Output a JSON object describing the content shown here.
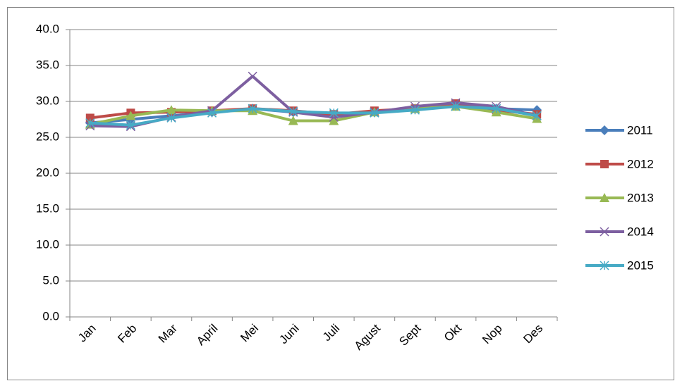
{
  "chart_data": {
    "type": "line",
    "categories": [
      "Jan",
      "Feb",
      "Mar",
      "April",
      "Mei",
      "Juni",
      "Juli",
      "Agust",
      "Sept",
      "Okt",
      "Nop",
      "Des"
    ],
    "series": [
      {
        "name": "2011",
        "color": "#4a7ebb",
        "marker": "diamond",
        "values": [
          27.0,
          27.5,
          28.0,
          28.5,
          29.0,
          28.5,
          28.0,
          28.5,
          29.0,
          29.5,
          29.0,
          28.8
        ]
      },
      {
        "name": "2012",
        "color": "#be4b48",
        "marker": "square",
        "values": [
          27.7,
          28.4,
          28.5,
          28.7,
          29.0,
          28.7,
          28.2,
          28.7,
          29.0,
          29.7,
          28.8,
          28.2
        ]
      },
      {
        "name": "2013",
        "color": "#98b954",
        "marker": "triangle",
        "values": [
          26.8,
          28.0,
          28.8,
          28.7,
          28.7,
          27.3,
          27.3,
          28.5,
          29.0,
          29.3,
          28.5,
          27.6
        ]
      },
      {
        "name": "2014",
        "color": "#7d5fa0",
        "marker": "x",
        "values": [
          26.6,
          26.5,
          27.8,
          28.7,
          33.5,
          28.5,
          27.8,
          28.5,
          29.3,
          29.8,
          29.3,
          28.0
        ]
      },
      {
        "name": "2015",
        "color": "#46aac5",
        "marker": "asterisk",
        "values": [
          27.0,
          26.7,
          27.7,
          28.4,
          29.0,
          28.6,
          28.4,
          28.4,
          28.8,
          29.3,
          29.0,
          28.0
        ]
      }
    ],
    "ylim": [
      0,
      40
    ],
    "yticks": [
      {
        "value": 0,
        "label": "0.0"
      },
      {
        "value": 5,
        "label": "5.0"
      },
      {
        "value": 10,
        "label": "10.0"
      },
      {
        "value": 15,
        "label": "15.0"
      },
      {
        "value": 20,
        "label": "20.0"
      },
      {
        "value": 25,
        "label": "25.0"
      },
      {
        "value": 30,
        "label": "30.0"
      },
      {
        "value": 35,
        "label": "35.0"
      },
      {
        "value": 40,
        "label": "40.0"
      }
    ],
    "grid": true,
    "legend": "right"
  }
}
